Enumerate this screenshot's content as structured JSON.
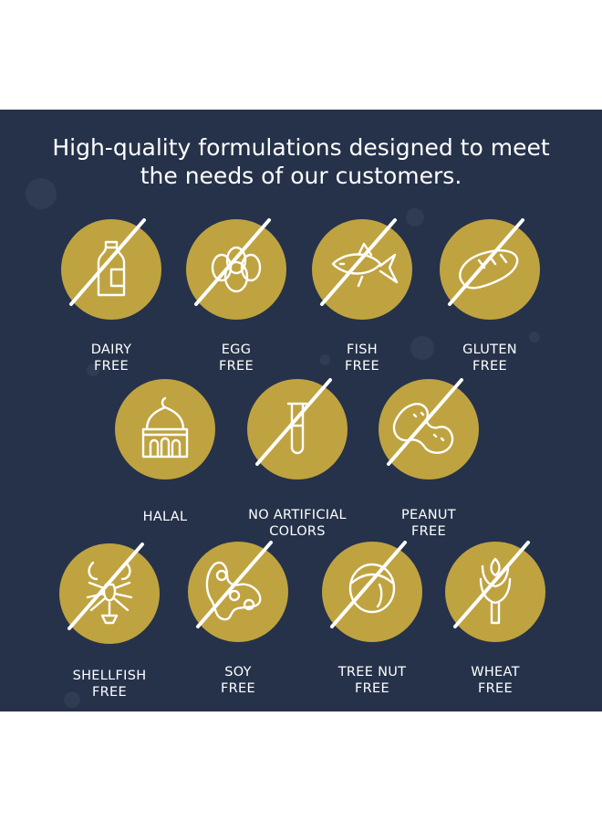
{
  "headline": {
    "line1": "High-quality formulations designed to meet",
    "line2": "the needs of our customers."
  },
  "colors": {
    "background": "#25324a",
    "badge": "#bfa340",
    "icon_stroke": "#ffffff"
  },
  "badges": [
    {
      "icon": "milk-bottle-icon",
      "line1": "DAIRY",
      "line2": "FREE",
      "crossed": true
    },
    {
      "icon": "eggs-icon",
      "line1": "EGG",
      "line2": "FREE",
      "crossed": true
    },
    {
      "icon": "fish-icon",
      "line1": "FISH",
      "line2": "FREE",
      "crossed": true
    },
    {
      "icon": "bread-icon",
      "line1": "GLUTEN",
      "line2": "FREE",
      "crossed": true
    },
    {
      "icon": "mosque-icon",
      "line1": "HALAL",
      "line2": "",
      "crossed": false
    },
    {
      "icon": "test-tube-icon",
      "line1": "NO ARTIFICIAL",
      "line2": "COLORS",
      "crossed": true
    },
    {
      "icon": "peanut-icon",
      "line1": "PEANUT",
      "line2": "FREE",
      "crossed": true
    },
    {
      "icon": "lobster-icon",
      "line1": "SHELLFISH",
      "line2": "FREE",
      "crossed": true
    },
    {
      "icon": "soybean-icon",
      "line1": "SOY",
      "line2": "FREE",
      "crossed": true
    },
    {
      "icon": "hazelnut-icon",
      "line1": "TREE NUT",
      "line2": "FREE",
      "crossed": true
    },
    {
      "icon": "wheat-icon",
      "line1": "WHEAT",
      "line2": "FREE",
      "crossed": true
    }
  ]
}
